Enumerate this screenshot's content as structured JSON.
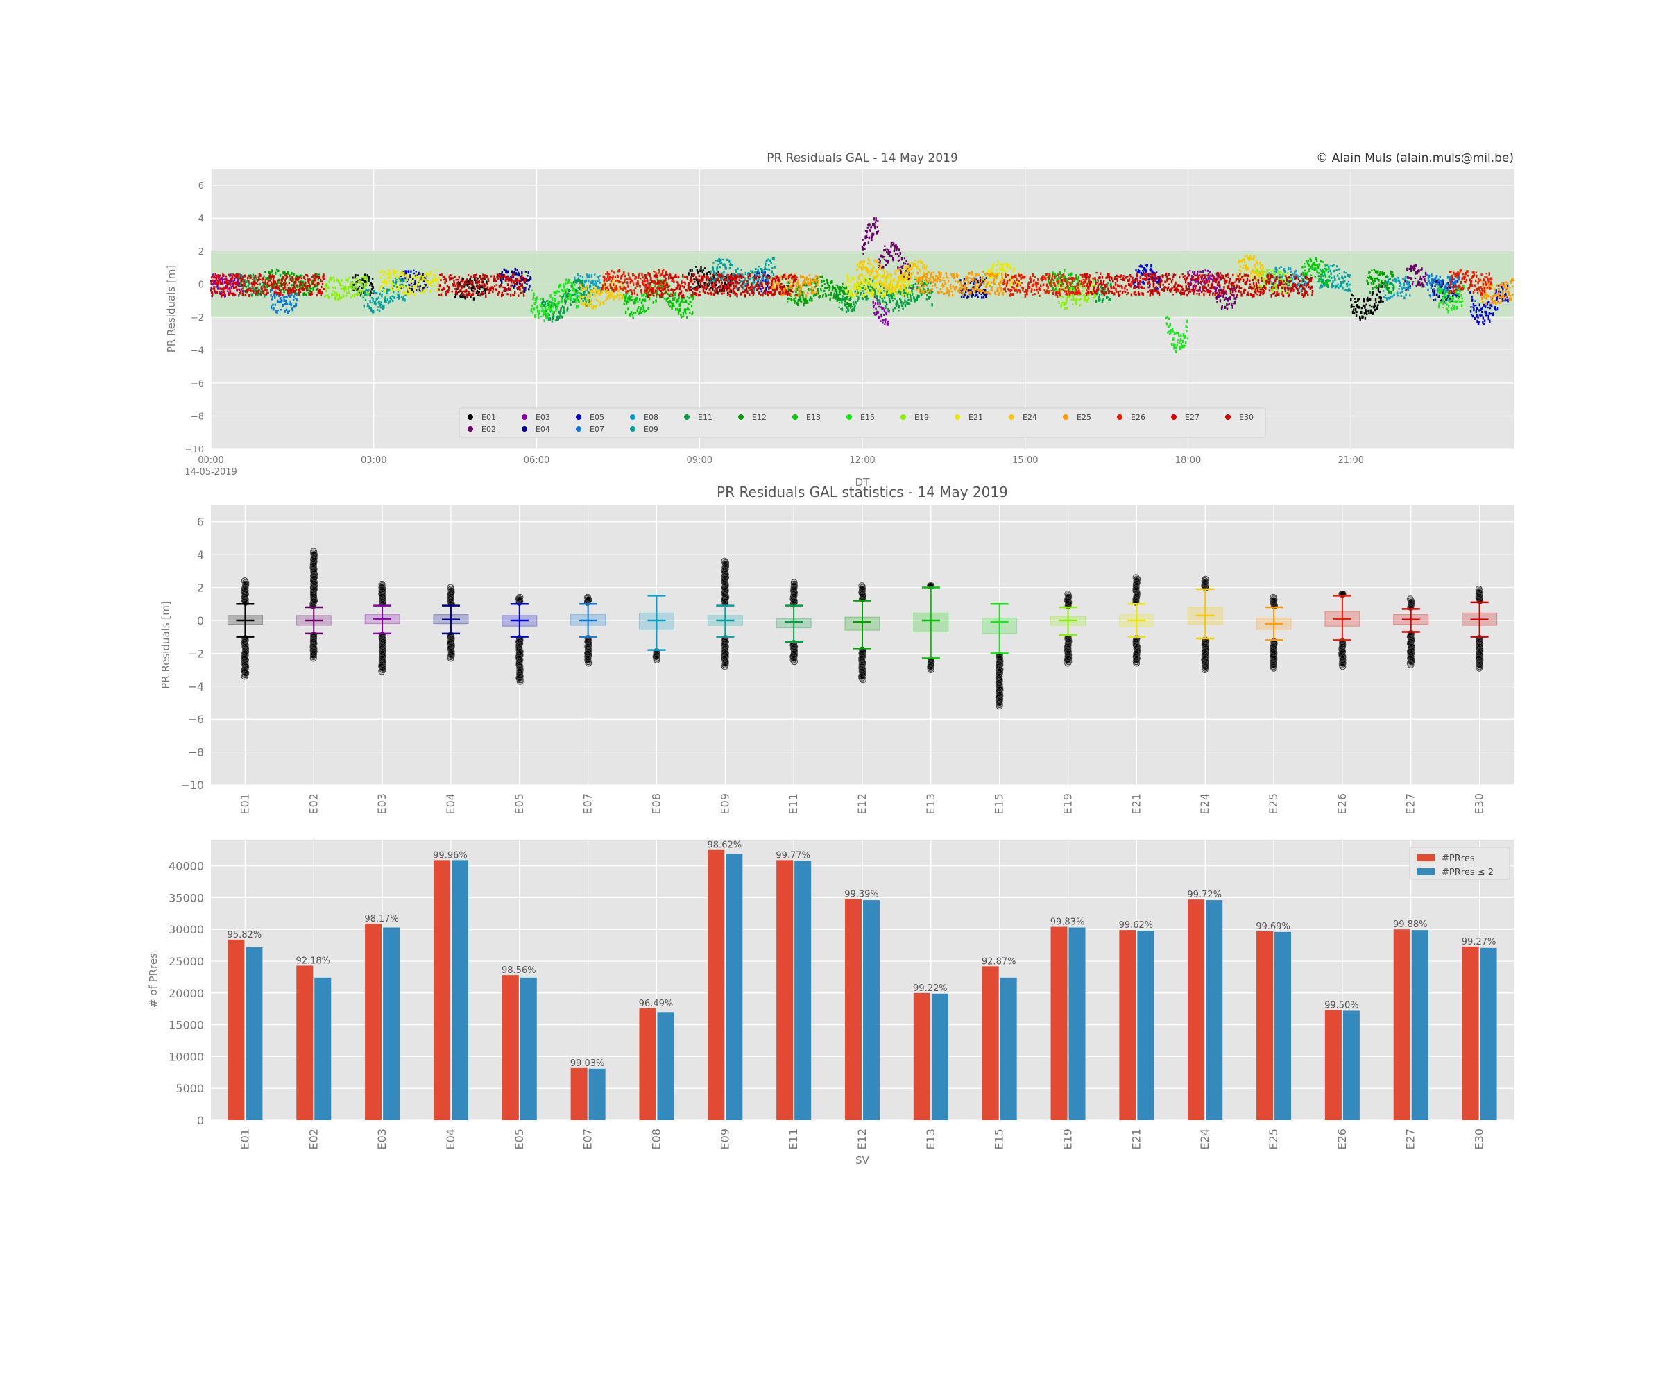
{
  "copyright": "© Alain Muls (alain.muls@mil.be)",
  "colors": {
    "background": "#e5e5e5",
    "grid": "#ffffff",
    "tick_text": "#777777",
    "title_text": "#555555",
    "band": "#c6e3c2",
    "bar_total": "#e24a33",
    "bar_le2": "#348abd"
  },
  "sv_colors": {
    "E01": "#000000",
    "E02": "#6a006a",
    "E03": "#8800a8",
    "E04": "#00008c",
    "E05": "#0000d8",
    "E07": "#0a78d8",
    "E08": "#08a0c8",
    "E09": "#00a0a0",
    "E11": "#00a040",
    "E12": "#00a000",
    "E13": "#00c800",
    "E15": "#18e818",
    "E19": "#88f000",
    "E21": "#e8e800",
    "E24": "#f8c800",
    "E25": "#ff9a00",
    "E26": "#ee1800",
    "E27": "#dd0000",
    "E30": "#cc0000"
  },
  "chart_data": [
    {
      "type": "scatter",
      "title": "PR Residuals GAL - 14 May 2019",
      "xlabel": "DT",
      "ylabel": "PR Residuals [m]",
      "x_ticks": [
        "00:00",
        "03:00",
        "06:00",
        "09:00",
        "12:00",
        "15:00",
        "18:00",
        "21:00"
      ],
      "x_subtick": "14-05-2019",
      "x_range_hours": [
        0,
        24
      ],
      "ylim": [
        -10,
        7
      ],
      "y_ticks": [
        -10,
        -8,
        -6,
        -4,
        -2,
        0,
        2,
        4,
        6
      ],
      "band": [
        -2,
        2
      ],
      "grid": true,
      "legend_position": "lower-center",
      "legend": [
        "E01",
        "E02",
        "E03",
        "E04",
        "E05",
        "E07",
        "E08",
        "E09",
        "E11",
        "E12",
        "E13",
        "E15",
        "E19",
        "E21",
        "E24",
        "E25",
        "E26",
        "E27",
        "E30"
      ],
      "series": [
        {
          "name": "E01",
          "segments": [
            [
              2.6,
              3.0,
              0.0
            ],
            [
              4.5,
              5.1,
              -0.2
            ],
            [
              8.8,
              9.6,
              0.5
            ],
            [
              21.0,
              21.6,
              -1.5
            ]
          ]
        },
        {
          "name": "E02",
          "segments": [
            [
              12.0,
              12.3,
              3.5
            ],
            [
              12.3,
              12.9,
              2.0
            ],
            [
              18.5,
              18.9,
              -0.8
            ],
            [
              22.0,
              22.4,
              0.6
            ]
          ]
        },
        {
          "name": "E03",
          "segments": [
            [
              0.0,
              0.6,
              0.0
            ],
            [
              12.2,
              12.5,
              -1.8
            ],
            [
              18.0,
              18.6,
              0.3
            ]
          ]
        },
        {
          "name": "E04",
          "segments": [
            [
              5.3,
              5.9,
              0.4
            ],
            [
              13.8,
              14.3,
              -0.2
            ],
            [
              22.5,
              23.0,
              -0.4
            ]
          ]
        },
        {
          "name": "E05",
          "segments": [
            [
              3.5,
              4.0,
              0.3
            ],
            [
              10.0,
              10.3,
              0.2
            ],
            [
              17.0,
              17.5,
              0.6
            ],
            [
              23.2,
              23.9,
              -1.8
            ]
          ]
        },
        {
          "name": "E07",
          "segments": [
            [
              1.1,
              1.6,
              -1.2
            ],
            [
              22.4,
              23.0,
              0.0
            ]
          ]
        },
        {
          "name": "E08",
          "segments": [
            [
              6.7,
              7.2,
              0.0
            ],
            [
              19.5,
              20.2,
              0.5
            ],
            [
              21.6,
              22.1,
              -0.2
            ]
          ]
        },
        {
          "name": "E09",
          "segments": [
            [
              2.8,
              3.6,
              -1.0
            ],
            [
              9.2,
              10.4,
              1.0
            ],
            [
              20.4,
              21.0,
              0.6
            ]
          ]
        },
        {
          "name": "E11",
          "segments": [
            [
              0.5,
              1.0,
              0.0
            ],
            [
              6.1,
              7.0,
              -1.6
            ],
            [
              11.5,
              13.3,
              -1.0
            ],
            [
              16.3,
              16.6,
              -0.5
            ]
          ]
        },
        {
          "name": "E12",
          "segments": [
            [
              1.0,
              2.0,
              0.3
            ],
            [
              10.6,
              11.8,
              -0.6
            ],
            [
              21.3,
              21.8,
              0.3
            ]
          ]
        },
        {
          "name": "E13",
          "segments": [
            [
              7.6,
              8.9,
              -1.4
            ],
            [
              15.4,
              16.0,
              0.3
            ],
            [
              20.1,
              20.6,
              1.0
            ]
          ]
        },
        {
          "name": "E15",
          "segments": [
            [
              5.9,
              6.8,
              -1.5
            ],
            [
              17.6,
              18.0,
              -3.5
            ],
            [
              22.6,
              23.1,
              -1.0
            ]
          ]
        },
        {
          "name": "E19",
          "segments": [
            [
              2.1,
              2.9,
              -0.2
            ],
            [
              15.6,
              16.3,
              -0.8
            ],
            [
              19.2,
              19.9,
              0.4
            ]
          ]
        },
        {
          "name": "E21",
          "segments": [
            [
              3.1,
              4.2,
              0.3
            ],
            [
              11.7,
              12.9,
              0.0
            ],
            [
              14.3,
              14.9,
              0.8
            ]
          ]
        },
        {
          "name": "E24",
          "segments": [
            [
              6.8,
              7.6,
              -0.8
            ],
            [
              11.9,
              13.2,
              1.0
            ],
            [
              18.9,
              19.4,
              1.2
            ]
          ]
        },
        {
          "name": "E25",
          "segments": [
            [
              10.3,
              11.2,
              0.0
            ],
            [
              13.0,
              14.6,
              0.2
            ],
            [
              23.4,
              24.0,
              -0.6
            ]
          ]
        },
        {
          "name": "E26",
          "segments": [
            [
              7.2,
              8.4,
              0.3
            ],
            [
              14.6,
              16.2,
              0.0
            ],
            [
              22.8,
              23.6,
              0.3
            ]
          ]
        },
        {
          "name": "E27",
          "segments": [
            [
              0.0,
              2.1,
              0.0
            ],
            [
              8.0,
              9.7,
              0.0
            ],
            [
              16.1,
              17.4,
              0.1
            ]
          ]
        },
        {
          "name": "E30",
          "segments": [
            [
              4.2,
              5.8,
              0.0
            ],
            [
              9.5,
              10.8,
              0.0
            ],
            [
              17.3,
              19.0,
              0.1
            ],
            [
              19.0,
              20.3,
              0.0
            ]
          ]
        }
      ]
    },
    {
      "type": "box",
      "title": "PR Residuals GAL statistics - 14 May 2019",
      "ylabel": "PR Residuals [m]",
      "ylim": [
        -10,
        7
      ],
      "y_ticks": [
        -10,
        -8,
        -6,
        -4,
        -2,
        0,
        2,
        4,
        6
      ],
      "grid": true,
      "categories": [
        "E01",
        "E02",
        "E03",
        "E04",
        "E05",
        "E07",
        "E08",
        "E09",
        "E11",
        "E12",
        "E13",
        "E15",
        "E19",
        "E21",
        "E24",
        "E25",
        "E26",
        "E27",
        "E30"
      ],
      "boxes": [
        {
          "sv": "E01",
          "q1": -0.25,
          "med": 0.0,
          "q3": 0.3,
          "wlo": -1.0,
          "whi": 1.0,
          "fmin": -3.4,
          "fmax": 2.4
        },
        {
          "sv": "E02",
          "q1": -0.3,
          "med": 0.0,
          "q3": 0.3,
          "wlo": -0.8,
          "whi": 0.8,
          "fmin": -2.3,
          "fmax": 4.2
        },
        {
          "sv": "E03",
          "q1": -0.2,
          "med": 0.1,
          "q3": 0.35,
          "wlo": -0.8,
          "whi": 0.9,
          "fmin": -3.1,
          "fmax": 2.2
        },
        {
          "sv": "E04",
          "q1": -0.2,
          "med": 0.05,
          "q3": 0.35,
          "wlo": -0.8,
          "whi": 0.9,
          "fmin": -2.3,
          "fmax": 2.0
        },
        {
          "sv": "E05",
          "q1": -0.35,
          "med": 0.0,
          "q3": 0.3,
          "wlo": -1.0,
          "whi": 1.0,
          "fmin": -3.7,
          "fmax": 1.4
        },
        {
          "sv": "E07",
          "q1": -0.3,
          "med": 0.0,
          "q3": 0.35,
          "wlo": -1.0,
          "whi": 1.0,
          "fmin": -2.6,
          "fmax": 1.4
        },
        {
          "sv": "E08",
          "q1": -0.55,
          "med": 0.0,
          "q3": 0.45,
          "wlo": -1.8,
          "whi": 1.5,
          "fmin": -2.4,
          "fmax": null
        },
        {
          "sv": "E09",
          "q1": -0.3,
          "med": 0.0,
          "q3": 0.3,
          "wlo": -1.0,
          "whi": 0.9,
          "fmin": -2.8,
          "fmax": 3.6
        },
        {
          "sv": "E11",
          "q1": -0.45,
          "med": -0.1,
          "q3": 0.1,
          "wlo": -1.3,
          "whi": 0.9,
          "fmin": -2.5,
          "fmax": 2.3
        },
        {
          "sv": "E12",
          "q1": -0.6,
          "med": -0.1,
          "q3": 0.2,
          "wlo": -1.7,
          "whi": 1.2,
          "fmin": -3.6,
          "fmax": 2.1
        },
        {
          "sv": "E13",
          "q1": -0.7,
          "med": 0.0,
          "q3": 0.45,
          "wlo": -2.3,
          "whi": 2.0,
          "fmin": -3.0,
          "fmax": 2.1
        },
        {
          "sv": "E15",
          "q1": -0.8,
          "med": -0.1,
          "q3": 0.15,
          "wlo": -2.0,
          "whi": 1.0,
          "fmin": -5.2,
          "fmax": null
        },
        {
          "sv": "E19",
          "q1": -0.3,
          "med": 0.0,
          "q3": 0.25,
          "wlo": -0.9,
          "whi": 0.8,
          "fmin": -2.6,
          "fmax": 1.6
        },
        {
          "sv": "E21",
          "q1": -0.4,
          "med": 0.0,
          "q3": 0.35,
          "wlo": -1.0,
          "whi": 1.0,
          "fmin": -2.6,
          "fmax": 2.6
        },
        {
          "sv": "E24",
          "q1": -0.25,
          "med": 0.3,
          "q3": 0.8,
          "wlo": -1.1,
          "whi": 1.9,
          "fmin": -3.0,
          "fmax": 2.5
        },
        {
          "sv": "E25",
          "q1": -0.55,
          "med": -0.2,
          "q3": 0.15,
          "wlo": -1.2,
          "whi": 0.8,
          "fmin": -2.9,
          "fmax": 1.4
        },
        {
          "sv": "E26",
          "q1": -0.35,
          "med": 0.1,
          "q3": 0.55,
          "wlo": -1.2,
          "whi": 1.5,
          "fmin": -2.8,
          "fmax": 1.6
        },
        {
          "sv": "E27",
          "q1": -0.25,
          "med": 0.05,
          "q3": 0.35,
          "wlo": -0.7,
          "whi": 0.7,
          "fmin": -2.7,
          "fmax": 1.3
        },
        {
          "sv": "E30",
          "q1": -0.3,
          "med": 0.05,
          "q3": 0.45,
          "wlo": -1.0,
          "whi": 1.1,
          "fmin": -2.9,
          "fmax": 1.9
        }
      ]
    },
    {
      "type": "bar",
      "xlabel": "SV",
      "ylabel": "# of PRres",
      "ylim": [
        0,
        44000
      ],
      "y_ticks": [
        0,
        5000,
        10000,
        15000,
        20000,
        25000,
        30000,
        35000,
        40000
      ],
      "grid": true,
      "legend_position": "top-right",
      "categories": [
        "E01",
        "E02",
        "E03",
        "E04",
        "E05",
        "E07",
        "E08",
        "E09",
        "E11",
        "E12",
        "E13",
        "E15",
        "E19",
        "E21",
        "E24",
        "E25",
        "E26",
        "E27",
        "E30"
      ],
      "series": [
        {
          "name": "#PRres",
          "values": [
            28400,
            24300,
            30900,
            40900,
            22800,
            8200,
            17600,
            42500,
            40900,
            34800,
            20000,
            24200,
            30400,
            29900,
            34700,
            29700,
            17300,
            30000,
            27300
          ]
        },
        {
          "name": "#PRres ≤ 2",
          "values": [
            27200,
            22400,
            30300,
            40900,
            22400,
            8100,
            17000,
            41900,
            40800,
            34600,
            19900,
            22400,
            30300,
            29800,
            34600,
            29600,
            17200,
            29900,
            27100
          ]
        }
      ],
      "labels": [
        "95.82%",
        "92.18%",
        "98.17%",
        "99.96%",
        "98.56%",
        "99.03%",
        "96.49%",
        "98.62%",
        "99.77%",
        "99.39%",
        "99.22%",
        "92.87%",
        "99.83%",
        "99.62%",
        "99.72%",
        "99.69%",
        "99.50%",
        "99.88%",
        "99.27%"
      ]
    }
  ]
}
